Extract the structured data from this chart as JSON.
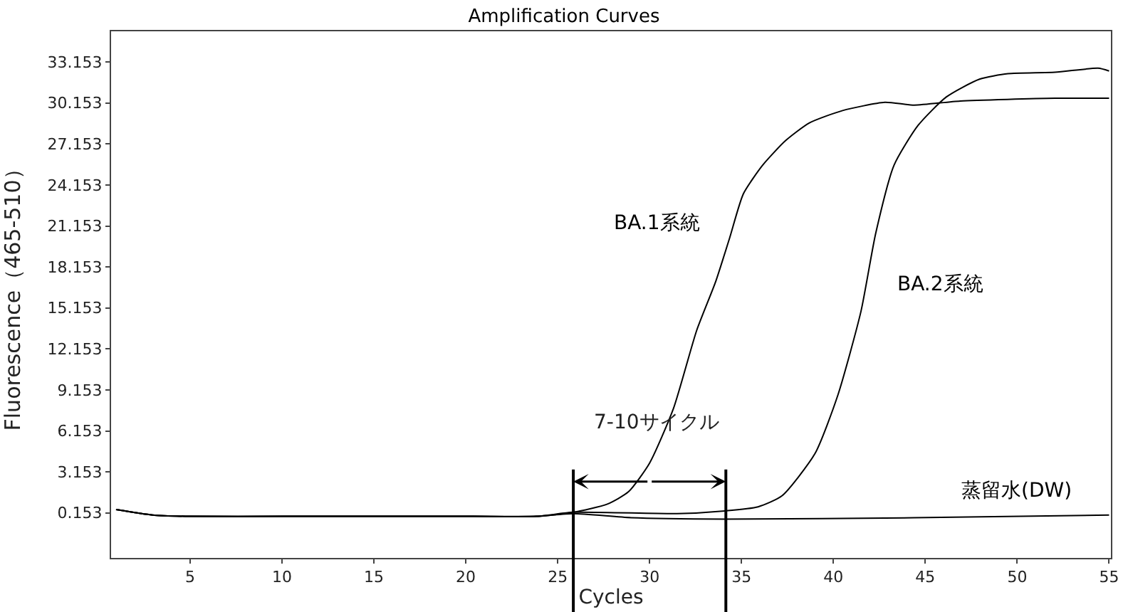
{
  "chart_data": {
    "type": "line",
    "title": "Amplification Curves",
    "xlabel": "Cycles",
    "ylabel": "Fluorescence（465-510）",
    "xlim": [
      0.7,
      55.1
    ],
    "ylim": [
      -3.14,
      35.4
    ],
    "xticks": [
      5,
      10,
      15,
      20,
      25,
      30,
      35,
      40,
      45,
      50,
      55
    ],
    "yticks": [
      0.153,
      3.153,
      6.153,
      9.153,
      12.153,
      15.153,
      18.153,
      21.153,
      24.153,
      27.153,
      30.153,
      33.153
    ],
    "legend": false,
    "marker": "none",
    "line_style": "solid",
    "series": [
      {
        "name": "BA.1系統",
        "color": "#000000",
        "x": [
          0.97,
          2.95,
          5,
          10.1,
          15,
          20.4,
          23.85,
          25.85,
          27.7,
          28.85,
          30,
          31.3,
          32.56,
          33.6,
          34.36,
          35.1,
          36.15,
          37.4,
          38.7,
          40.5,
          42.8,
          44.4,
          46.9,
          52.05,
          55
        ],
        "values": [
          0.4,
          0.0,
          -0.1,
          -0.1,
          -0.1,
          -0.1,
          -0.1,
          0.2,
          0.8,
          1.7,
          3.8,
          7.8,
          13.5,
          17.1,
          20.3,
          23.5,
          25.6,
          27.4,
          28.7,
          29.6,
          30.2,
          30.0,
          30.3,
          30.5,
          30.5
        ]
      },
      {
        "name": "BA.2系統",
        "color": "#000000",
        "x": [
          0.97,
          2.95,
          5,
          10.1,
          15,
          20.4,
          23.85,
          25.85,
          31.5,
          34.1,
          35.9,
          37.2,
          39,
          40.25,
          41.5,
          42.3,
          43.3,
          44.6,
          46.15,
          47.95,
          49.5,
          52.05,
          54.4,
          55
        ],
        "values": [
          0.4,
          0.0,
          -0.1,
          -0.1,
          -0.1,
          -0.1,
          -0.1,
          0.2,
          0.1,
          0.3,
          0.6,
          1.4,
          4.5,
          8.8,
          14.9,
          20.6,
          25.6,
          28.5,
          30.6,
          31.9,
          32.3,
          32.4,
          32.7,
          32.5
        ]
      },
      {
        "name": "蒸留水(DW)",
        "color": "#000000",
        "x": [
          0.97,
          2.95,
          5,
          10.1,
          15,
          20.4,
          23.85,
          25.85,
          29,
          34.1,
          44.4,
          55
        ],
        "values": [
          0.4,
          0.0,
          -0.1,
          -0.1,
          -0.1,
          -0.1,
          -0.1,
          0.1,
          -0.2,
          -0.3,
          -0.2,
          0.0
        ]
      }
    ],
    "ref_lines": [
      {
        "axis": "x",
        "value": 25.85
      },
      {
        "axis": "x",
        "value": 34.15
      }
    ],
    "annotations": [
      "7-10サイクル"
    ]
  }
}
